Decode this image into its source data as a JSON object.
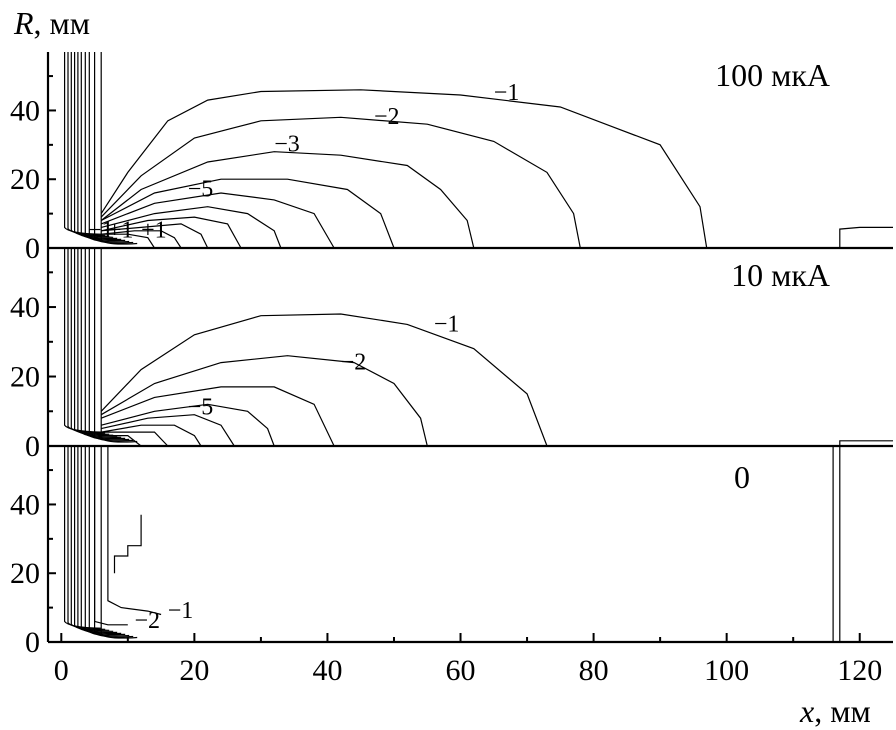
{
  "chart_data": {
    "type": "line",
    "title": "",
    "xlabel": "x, мм",
    "ylabel": "R, мм",
    "xlabel_var": "x",
    "xlabel_unit": ", мм",
    "ylabel_var": "R",
    "ylabel_unit": ", мм",
    "xlim": [
      -2,
      125
    ],
    "ylim": [
      0,
      57
    ],
    "x_ticks": [
      0,
      20,
      40,
      60,
      80,
      100,
      120
    ],
    "y_ticks": [
      0,
      20,
      40
    ],
    "grid": false,
    "panels": [
      {
        "label": "100 мкА",
        "contour_labels": [
          {
            "text": "−1",
            "x": 65,
            "y": 43
          },
          {
            "text": "−2",
            "x": 47,
            "y": 36
          },
          {
            "text": "−3",
            "x": 32,
            "y": 28
          },
          {
            "text": "−5",
            "x": 19,
            "y": 15
          },
          {
            "text": "−1",
            "x": 4,
            "y": 3
          },
          {
            "text": "+1",
            "x": 7,
            "y": 3
          },
          {
            "text": "+1",
            "x": 12,
            "y": 3
          }
        ],
        "contours": [
          {
            "value": -1,
            "points": [
              [
                6,
                10
              ],
              [
                10,
                22
              ],
              [
                16,
                37
              ],
              [
                22,
                43
              ],
              [
                30,
                45.5
              ],
              [
                45,
                46
              ],
              [
                60,
                44.5
              ],
              [
                75,
                41
              ],
              [
                90,
                30
              ],
              [
                96,
                12
              ],
              [
                97,
                0
              ]
            ]
          },
          {
            "value": -2,
            "points": [
              [
                6,
                9
              ],
              [
                12,
                21
              ],
              [
                20,
                32
              ],
              [
                30,
                37
              ],
              [
                42,
                38
              ],
              [
                55,
                36
              ],
              [
                65,
                31
              ],
              [
                73,
                22
              ],
              [
                77,
                10
              ],
              [
                78,
                0
              ]
            ]
          },
          {
            "value": -3,
            "points": [
              [
                6,
                8
              ],
              [
                12,
                17
              ],
              [
                22,
                25
              ],
              [
                32,
                28
              ],
              [
                42,
                27
              ],
              [
                52,
                24
              ],
              [
                57,
                17
              ],
              [
                61,
                8
              ],
              [
                62,
                0
              ]
            ]
          },
          {
            "value": -4,
            "points": [
              [
                6,
                8
              ],
              [
                14,
                16
              ],
              [
                24,
                20
              ],
              [
                34,
                20
              ],
              [
                43,
                17
              ],
              [
                48,
                10
              ],
              [
                50,
                0
              ]
            ]
          },
          {
            "value": -5,
            "points": [
              [
                6,
                7
              ],
              [
                14,
                13
              ],
              [
                24,
                16
              ],
              [
                32,
                14
              ],
              [
                38,
                10
              ],
              [
                41,
                0
              ]
            ]
          },
          {
            "value": -6,
            "points": [
              [
                6,
                6
              ],
              [
                14,
                10
              ],
              [
                22,
                12
              ],
              [
                28,
                10
              ],
              [
                32,
                5
              ],
              [
                33,
                0
              ]
            ]
          },
          {
            "value": -7,
            "points": [
              [
                6,
                5
              ],
              [
                13,
                8
              ],
              [
                20,
                9
              ],
              [
                25,
                7
              ],
              [
                27,
                0
              ]
            ]
          },
          {
            "value": -8,
            "points": [
              [
                6,
                5
              ],
              [
                12,
                6
              ],
              [
                18,
                7
              ],
              [
                21,
                4
              ],
              [
                22,
                0
              ]
            ]
          },
          {
            "value": -9,
            "points": [
              [
                6,
                4
              ],
              [
                11,
                5
              ],
              [
                15,
                5
              ],
              [
                17,
                3
              ],
              [
                18,
                0
              ]
            ]
          },
          {
            "value": -10,
            "points": [
              [
                6,
                4
              ],
              [
                10,
                4
              ],
              [
                13,
                3
              ],
              [
                14,
                0
              ]
            ]
          },
          {
            "value": 1,
            "points": [
              [
                117,
                0
              ],
              [
                117,
                5.5
              ],
              [
                120,
                6
              ],
              [
                125,
                6
              ]
            ]
          }
        ]
      },
      {
        "label": "10 мкА",
        "contour_labels": [
          {
            "text": "−1",
            "x": 56,
            "y": 33
          },
          {
            "text": "−2",
            "x": 42,
            "y": 22
          },
          {
            "text": "−5",
            "x": 19,
            "y": 9
          }
        ],
        "contours": [
          {
            "value": -1,
            "points": [
              [
                6,
                10
              ],
              [
                12,
                22
              ],
              [
                20,
                32
              ],
              [
                30,
                37.5
              ],
              [
                42,
                38
              ],
              [
                52,
                35
              ],
              [
                62,
                28
              ],
              [
                70,
                15
              ],
              [
                73,
                0
              ]
            ]
          },
          {
            "value": -2,
            "points": [
              [
                6,
                9
              ],
              [
                14,
                18
              ],
              [
                24,
                24
              ],
              [
                34,
                26
              ],
              [
                44,
                24
              ],
              [
                50,
                18
              ],
              [
                54,
                8
              ],
              [
                55,
                0
              ]
            ]
          },
          {
            "value": -3,
            "points": [
              [
                6,
                8
              ],
              [
                14,
                14
              ],
              [
                24,
                17
              ],
              [
                32,
                17
              ],
              [
                38,
                12
              ],
              [
                41,
                0
              ]
            ]
          },
          {
            "value": -4,
            "points": [
              [
                6,
                6
              ],
              [
                14,
                10
              ],
              [
                22,
                12
              ],
              [
                28,
                10
              ],
              [
                31,
                5
              ],
              [
                32,
                0
              ]
            ]
          },
          {
            "value": -5,
            "points": [
              [
                6,
                5
              ],
              [
                13,
                8
              ],
              [
                20,
                9
              ],
              [
                24,
                6
              ],
              [
                26,
                0
              ]
            ]
          },
          {
            "value": -6,
            "points": [
              [
                6,
                4
              ],
              [
                12,
                6
              ],
              [
                17,
                6
              ],
              [
                20,
                3
              ],
              [
                21,
                0
              ]
            ]
          },
          {
            "value": -7,
            "points": [
              [
                6,
                4
              ],
              [
                11,
                4
              ],
              [
                14,
                4
              ],
              [
                16,
                0
              ]
            ]
          },
          {
            "value": -8,
            "points": [
              [
                6,
                3
              ],
              [
                10,
                3
              ],
              [
                12,
                0
              ]
            ]
          },
          {
            "value": 1,
            "points": [
              [
                117,
                0
              ],
              [
                117,
                1.5
              ],
              [
                120,
                1.5
              ],
              [
                125,
                1.5
              ]
            ]
          }
        ]
      },
      {
        "label": "0",
        "contour_labels": [
          {
            "text": "−2",
            "x": 11,
            "y": 4
          },
          {
            "text": "−1",
            "x": 16,
            "y": 7
          }
        ],
        "contours": [
          {
            "value": -1,
            "points": [
              [
                7,
                57
              ],
              [
                7,
                12
              ],
              [
                9,
                10
              ],
              [
                13,
                9
              ],
              [
                15,
                8
              ]
            ]
          },
          {
            "value": -2,
            "points": [
              [
                5,
                57
              ],
              [
                5,
                6
              ],
              [
                7,
                5
              ],
              [
                10,
                5
              ]
            ]
          },
          {
            "value": -1,
            "points": [
              [
                8,
                20
              ],
              [
                8,
                25
              ],
              [
                10,
                25
              ],
              [
                10,
                28
              ],
              [
                12,
                28
              ],
              [
                12,
                37
              ]
            ]
          },
          {
            "value": -1,
            "points": [
              [
                116,
                0
              ],
              [
                116,
                57
              ],
              [
                117,
                57
              ],
              [
                117,
                0
              ]
            ]
          }
        ]
      }
    ]
  }
}
